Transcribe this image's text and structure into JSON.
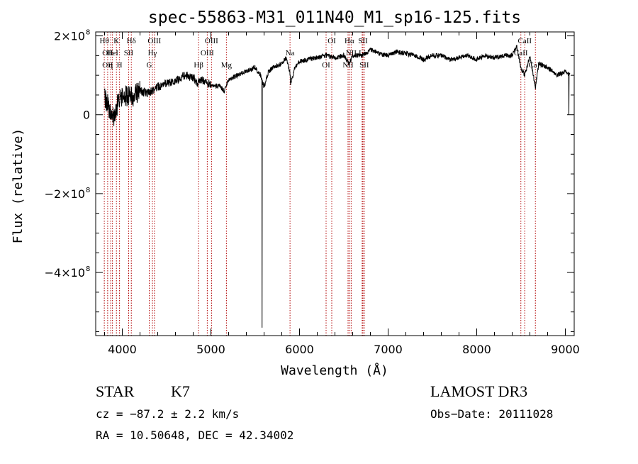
{
  "chart_data": {
    "type": "line",
    "title": "spec-55863-M31_011N40_M1_sp16-125.fits",
    "xlabel": "Wavelength (Å)",
    "ylabel": "Flux (relative)",
    "xlim": [
      3700,
      9100
    ],
    "ylim": [
      -560,
      210
    ],
    "x_ticks": [
      4000,
      5000,
      6000,
      7000,
      8000,
      9000
    ],
    "x_tick_labels": [
      "4000",
      "5000",
      "6000",
      "7000",
      "8000",
      "9000"
    ],
    "y_ticks": [
      -400,
      -200,
      0,
      200
    ],
    "y_tick_labels": [
      {
        "mantissa": "−4×10",
        "exp": "8"
      },
      {
        "mantissa": "−2×10",
        "exp": "8"
      },
      {
        "mantissa": "0",
        "exp": ""
      },
      {
        "mantissa": "2×10",
        "exp": "8"
      }
    ],
    "y_unit_note": "y values in units of 10^6 (relative flux)",
    "spectrum_anchors": {
      "x": [
        3800,
        3850,
        3900,
        3950,
        4000,
        4100,
        4200,
        4300,
        4400,
        4500,
        4600,
        4700,
        4800,
        4850,
        4900,
        5000,
        5100,
        5150,
        5200,
        5300,
        5400,
        5500,
        5560,
        5600,
        5650,
        5700,
        5800,
        5850,
        5890,
        5900,
        5950,
        6000,
        6100,
        6200,
        6300,
        6400,
        6500,
        6563,
        6600,
        6700,
        6800,
        6900,
        7000,
        7100,
        7200,
        7300,
        7400,
        7500,
        7600,
        7700,
        7800,
        7900,
        8000,
        8100,
        8200,
        8300,
        8400,
        8450,
        8498,
        8542,
        8600,
        8662,
        8700,
        8800,
        8900,
        9000,
        9050
      ],
      "y": [
        40,
        20,
        -5,
        30,
        50,
        45,
        60,
        55,
        70,
        80,
        85,
        100,
        95,
        80,
        90,
        75,
        72,
        60,
        90,
        100,
        110,
        120,
        100,
        70,
        110,
        120,
        130,
        145,
        110,
        80,
        120,
        135,
        140,
        145,
        150,
        145,
        150,
        130,
        150,
        150,
        165,
        155,
        150,
        160,
        155,
        150,
        140,
        150,
        150,
        140,
        145,
        150,
        140,
        150,
        145,
        150,
        150,
        175,
        120,
        100,
        150,
        70,
        130,
        120,
        100,
        110,
        100
      ]
    },
    "spikes": [
      {
        "x": 5577,
        "y": -540
      },
      {
        "x": 9040,
        "y": 0
      }
    ],
    "lines": [
      {
        "wl": 3797,
        "label": "Hθ",
        "row": 1
      },
      {
        "wl": 3835,
        "label": "OII",
        "row": 2
      },
      {
        "wl": 3835,
        "label": "OII",
        "row": 3
      },
      {
        "wl": 3870,
        "label": "η",
        "row": 3
      },
      {
        "wl": 3889,
        "label": "HeI",
        "row": 2
      },
      {
        "wl": 3934,
        "label": "K",
        "row": 1
      },
      {
        "wl": 3969,
        "label": "H",
        "row": 3
      },
      {
        "wl": 4072,
        "label": "SII",
        "row": 2
      },
      {
        "wl": 4102,
        "label": "Hδ",
        "row": 1
      },
      {
        "wl": 4304,
        "label": "G",
        "row": 3
      },
      {
        "wl": 4340,
        "label": "Hγ",
        "row": 2
      },
      {
        "wl": 4363,
        "label": "OIII",
        "row": 1
      },
      {
        "wl": 4861,
        "label": "Hβ",
        "row": 3
      },
      {
        "wl": 4959,
        "label": "OIII",
        "row": 2
      },
      {
        "wl": 5007,
        "label": "OIII",
        "row": 1
      },
      {
        "wl": 5175,
        "label": "Mg",
        "row": 3
      },
      {
        "wl": 5893,
        "label": "Na",
        "row": 2
      },
      {
        "wl": 6300,
        "label": "OI",
        "row": 3
      },
      {
        "wl": 6364,
        "label": "OI",
        "row": 1
      },
      {
        "wl": 6548,
        "label": "NII",
        "row": 3
      },
      {
        "wl": 6563,
        "label": "Hα",
        "row": 1
      },
      {
        "wl": 6583,
        "label": "NII",
        "row": 2
      },
      {
        "wl": 6707,
        "label": "Li",
        "row": 2
      },
      {
        "wl": 6716,
        "label": "SII",
        "row": 1
      },
      {
        "wl": 6731,
        "label": "SII",
        "row": 3
      },
      {
        "wl": 8498,
        "label": "CaII",
        "row": 2
      },
      {
        "wl": 8542,
        "label": "CaII",
        "row": 1
      },
      {
        "wl": 8662,
        "label": "CaII",
        "row": 3
      }
    ],
    "grid": false,
    "legend": "none"
  },
  "info": {
    "class": "STAR",
    "subclass": "K7",
    "cz": "cz = −87.2 ± 2.2 km/s",
    "coords": "RA =  10.50648, DEC =  42.34002",
    "survey": "LAMOST DR3",
    "obs_date": "Obs−Date: 20111028"
  },
  "colors": {
    "axes": "#000000",
    "spectrum": "#000000",
    "line_markers": "#b00000",
    "background": "#ffffff"
  }
}
